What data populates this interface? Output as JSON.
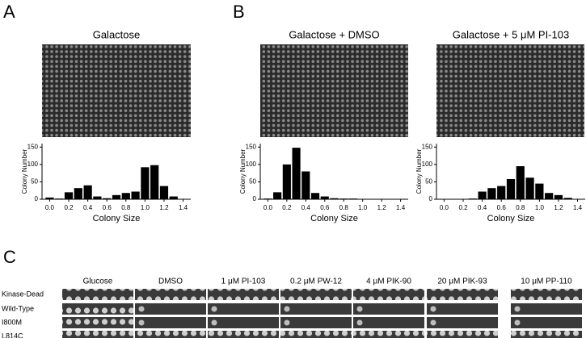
{
  "panel_labels": [
    "A",
    "B"
  ],
  "chart_data": [
    {
      "type": "histogram",
      "title": "Galactose",
      "xlabel": "Colony Size",
      "ylabel": "Colony Number",
      "bins": [
        -0.05,
        0.05,
        0.15,
        0.25,
        0.35,
        0.45,
        0.55,
        0.65,
        0.75,
        0.85,
        0.95,
        1.05,
        1.15,
        1.25,
        1.35,
        1.45
      ],
      "values": [
        5,
        2,
        20,
        32,
        40,
        8,
        3,
        12,
        18,
        22,
        92,
        98,
        38,
        8,
        1
      ],
      "color": "#000000",
      "xlim": [
        -0.08,
        1.48
      ],
      "ylim": [
        0,
        160
      ],
      "xticks": [
        {
          "value": 0,
          "label": "0.0"
        },
        0.2,
        0.4,
        0.6,
        0.8,
        {
          "value": 1,
          "label": "1.0"
        },
        1.2,
        1.4
      ],
      "yticks": [
        0,
        50,
        100,
        150
      ]
    },
    {
      "type": "histogram",
      "title": "Galactose + DMSO",
      "xlabel": "Colony Size",
      "ylabel": "Colony Number",
      "bins": [
        -0.05,
        0.05,
        0.15,
        0.25,
        0.35,
        0.45,
        0.55,
        0.65,
        0.75,
        0.85,
        0.95,
        1.05,
        1.15,
        1.25,
        1.35,
        1.45
      ],
      "values": [
        2,
        20,
        100,
        148,
        80,
        18,
        8,
        3,
        2,
        2,
        1,
        1,
        1,
        1,
        1
      ],
      "color": "#000000",
      "xlim": [
        -0.08,
        1.48
      ],
      "ylim": [
        0,
        160
      ],
      "xticks": [
        {
          "value": 0,
          "label": "0.0"
        },
        0.2,
        0.4,
        0.6,
        0.8,
        {
          "value": 1,
          "label": "1.0"
        },
        1.2,
        1.4
      ],
      "yticks": [
        0,
        50,
        100,
        150
      ]
    },
    {
      "type": "histogram",
      "title": "Galactose + 5 μM PI-103",
      "xlabel": "Colony Size",
      "ylabel": "Colony Number",
      "bins": [
        -0.05,
        0.05,
        0.15,
        0.25,
        0.35,
        0.45,
        0.55,
        0.65,
        0.75,
        0.85,
        0.95,
        1.05,
        1.15,
        1.25,
        1.35,
        1.45
      ],
      "values": [
        1,
        1,
        1,
        2,
        22,
        32,
        38,
        58,
        95,
        62,
        45,
        18,
        12,
        4,
        1
      ],
      "color": "#000000",
      "xlim": [
        -0.08,
        1.48
      ],
      "ylim": [
        0,
        160
      ],
      "xticks": [
        {
          "value": 0,
          "label": "0.0"
        },
        0.2,
        0.4,
        0.6,
        0.8,
        {
          "value": 1,
          "label": "1.0"
        },
        1.2,
        1.4
      ],
      "yticks": [
        0,
        50,
        100,
        150
      ]
    }
  ],
  "panel_c": {
    "label": "C",
    "columns": [
      "Glucose",
      "DMSO",
      "1 μM PI-103",
      "0.2 μM PW-12",
      "4 μM PIK-90",
      "20 μM PIK-93",
      "10 μM PP-110"
    ],
    "rows": [
      "Kinase-Dead",
      "Wild-Type",
      "I800M",
      "L814C"
    ]
  }
}
